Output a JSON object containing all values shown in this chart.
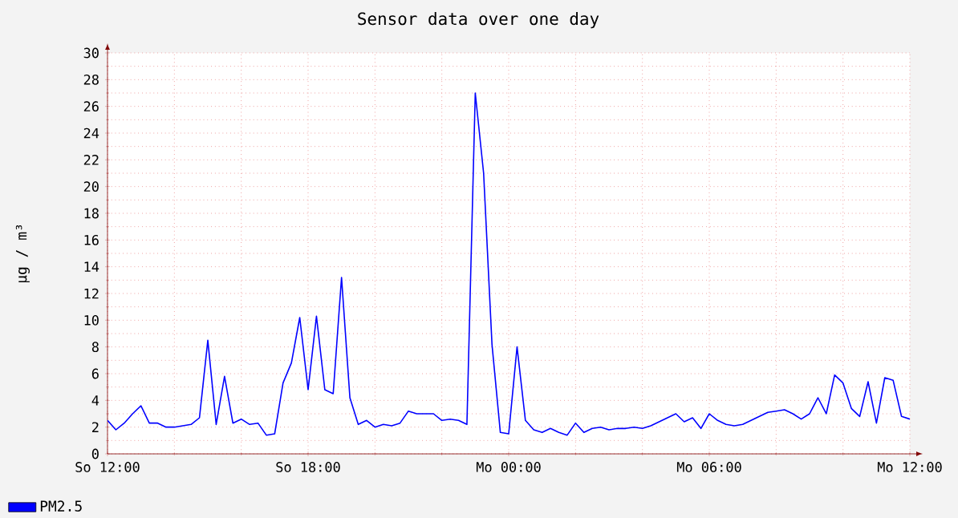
{
  "chart_data": {
    "type": "line",
    "title": "Sensor data over one day",
    "ylabel": "µg / m³",
    "categories": [
      "So 12:00",
      null,
      null,
      null,
      null,
      null,
      null,
      null,
      null,
      null,
      null,
      null,
      null,
      null,
      null,
      null,
      null,
      null,
      null,
      null,
      null,
      null,
      null,
      null,
      "So 18:00",
      null,
      null,
      null,
      null,
      null,
      null,
      null,
      null,
      null,
      null,
      null,
      null,
      null,
      null,
      null,
      null,
      null,
      null,
      null,
      null,
      null,
      null,
      null,
      "Mo 00:00",
      null,
      null,
      null,
      null,
      null,
      null,
      null,
      null,
      null,
      null,
      null,
      null,
      null,
      null,
      null,
      null,
      null,
      null,
      null,
      null,
      null,
      null,
      null,
      "Mo 06:00",
      null,
      null,
      null,
      null,
      null,
      null,
      null,
      null,
      null,
      null,
      null,
      null,
      null,
      null,
      null,
      null,
      null,
      null,
      null,
      null,
      null,
      null,
      null,
      "Mo 12:00"
    ],
    "series": [
      {
        "name": "PM2.5",
        "color": "#0000ff",
        "values": [
          2.5,
          1.8,
          2.3,
          3.0,
          3.6,
          2.3,
          2.3,
          2.0,
          2.0,
          2.1,
          2.2,
          2.7,
          8.5,
          2.2,
          5.8,
          2.3,
          2.6,
          2.2,
          2.3,
          1.4,
          1.5,
          5.3,
          6.8,
          10.2,
          4.8,
          10.3,
          4.8,
          4.5,
          13.2,
          4.2,
          2.2,
          2.5,
          2.0,
          2.2,
          2.1,
          2.3,
          3.2,
          3.0,
          3.0,
          3.0,
          2.5,
          2.6,
          2.5,
          2.2,
          27,
          21,
          8.2,
          1.6,
          1.5,
          8.0,
          2.5,
          1.8,
          1.6,
          1.9,
          1.6,
          1.4,
          2.3,
          1.6,
          1.9,
          2.0,
          1.8,
          1.9,
          1.9,
          2.0,
          1.9,
          2.1,
          2.4,
          2.7,
          3.0,
          2.4,
          2.7,
          1.9,
          3.0,
          2.5,
          2.2,
          2.1,
          2.2,
          2.5,
          2.8,
          3.1,
          3.2,
          3.3,
          3.0,
          2.6,
          3.0,
          4.2,
          3.0,
          5.9,
          5.3,
          3.4,
          2.8,
          5.4,
          2.3,
          5.7,
          5.5,
          2.8,
          2.6
        ]
      }
    ],
    "ylim": [
      0,
      30
    ],
    "yticks": [
      0,
      2,
      4,
      6,
      8,
      10,
      12,
      14,
      16,
      18,
      20,
      22,
      24,
      26,
      28,
      30
    ],
    "grid": true,
    "legend": "bottom left",
    "marker": "none",
    "line_style": "solid"
  }
}
